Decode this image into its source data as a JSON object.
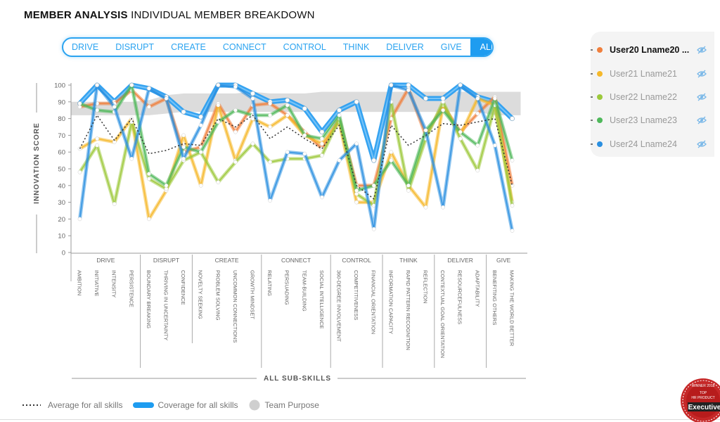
{
  "page": {
    "title_bold": "MEMBER ANALYSIS",
    "title_rest": "INDIVIDUAL MEMBER BREAKDOWN"
  },
  "tabs": [
    {
      "label": "DRIVE",
      "active": false
    },
    {
      "label": "DISRUPT",
      "active": false
    },
    {
      "label": "CREATE",
      "active": false
    },
    {
      "label": "CONNECT",
      "active": false
    },
    {
      "label": "CONTROL",
      "active": false
    },
    {
      "label": "THINK",
      "active": false
    },
    {
      "label": "DELIVER",
      "active": false
    },
    {
      "label": "GIVE",
      "active": false
    },
    {
      "label": "ALL",
      "active": true
    }
  ],
  "users": [
    {
      "name": "User20 Lname20 ...",
      "color": "#f07f3c",
      "selected": true,
      "icon": "eye-slash-icon"
    },
    {
      "name": "User21 Lname21",
      "color": "#f5b82a",
      "selected": false,
      "icon": "eye-slash-icon"
    },
    {
      "name": "User22 Lname22",
      "color": "#9cc93b",
      "selected": false,
      "icon": "eye-slash-icon"
    },
    {
      "name": "User23 Lname23",
      "color": "#4fb85a",
      "selected": false,
      "icon": "eye-slash-icon"
    },
    {
      "name": "User24 Lname24",
      "color": "#2a8fe0",
      "selected": false,
      "icon": "eye-slash-icon"
    }
  ],
  "legend": {
    "average": "Average for all skills",
    "coverage": "Coverage for all skills",
    "purpose": "Team Purpose"
  },
  "badge": {
    "line1": "WINNER 2018",
    "line2": "TOP",
    "line3": "HR PRODUCT",
    "line4": "Executive"
  },
  "chart_data": {
    "type": "line",
    "ylabel": "INNOVATION SCORE",
    "xlabel": "ALL SUB-SKILLS",
    "ylim": [
      0,
      100
    ],
    "yticks": [
      0,
      10,
      20,
      30,
      40,
      50,
      60,
      70,
      80,
      90,
      100
    ],
    "groups": [
      {
        "label": "DRIVE",
        "count": 4
      },
      {
        "label": "DISRUPT",
        "count": 3
      },
      {
        "label": "CREATE",
        "count": 4
      },
      {
        "label": "CONNECT",
        "count": 4
      },
      {
        "label": "CONTROL",
        "count": 3
      },
      {
        "label": "THINK",
        "count": 3
      },
      {
        "label": "DELIVER",
        "count": 3
      },
      {
        "label": "GIVE",
        "count": 2
      }
    ],
    "categories": [
      "AMBITION",
      "INITIATIVE",
      "INTENSITY",
      "PERSISTENCE",
      "BOUNDARY BREAKING",
      "THRIVING IN UNCERTAINTY",
      "CONFIDENCE",
      "NOVELTY SEEKING",
      "PROBLEM SOLVING",
      "UNCOMMON CONNECTIONS",
      "GROWTH MINDSET",
      "RELATING",
      "PERSUADING",
      "TEAM-BUILDING",
      "SOCIAL INTELLIGENCE",
      "360-DEGREE INVOLVEMENT",
      "COMPETITIVENESS",
      "FINANCIAL ORIENTATION",
      "INFORMATION CAPACITY",
      "RAPID PATTERN RECOGNITION",
      "REFLECTION",
      "CONTEXTUAL GOAL ORIENTATION",
      "RESOURCEFULNESS",
      "ADAPTABILITY",
      "BENEFITING OTHERS",
      "MAKING THE WORLD BETTER"
    ],
    "series": [
      {
        "name": "User20 Lname20",
        "color": "#f07f3c",
        "values": [
          87,
          89,
          89,
          97,
          87,
          92,
          60,
          63,
          89,
          72,
          88,
          89,
          82,
          72,
          62,
          80,
          40,
          40,
          80,
          98,
          70,
          88,
          72,
          83,
          93,
          40
        ]
      },
      {
        "name": "User21 Lname21",
        "color": "#f5b82a",
        "values": [
          62,
          68,
          66,
          80,
          20,
          37,
          70,
          40,
          88,
          55,
          80,
          75,
          82,
          70,
          65,
          78,
          30,
          30,
          60,
          40,
          27,
          88,
          70,
          92,
          88,
          30
        ]
      },
      {
        "name": "User22 Lname22",
        "color": "#9cc93b",
        "values": [
          48,
          64,
          29,
          78,
          44,
          38,
          55,
          60,
          42,
          54,
          65,
          54,
          56,
          56,
          58,
          80,
          35,
          28,
          90,
          37,
          68,
          90,
          68,
          49,
          88,
          28
        ]
      },
      {
        "name": "User23 Lname23",
        "color": "#4fb85a",
        "values": [
          89,
          85,
          84,
          100,
          47,
          40,
          63,
          60,
          78,
          85,
          82,
          82,
          88,
          70,
          68,
          82,
          37,
          40,
          55,
          40,
          73,
          85,
          72,
          64,
          92,
          55
        ]
      },
      {
        "name": "User24 Lname24",
        "color": "#2a8fe0",
        "values": [
          20,
          100,
          87,
          56,
          98,
          92,
          56,
          76,
          100,
          99,
          92,
          31,
          60,
          59,
          33,
          55,
          65,
          14,
          100,
          97,
          73,
          27,
          100,
          92,
          64,
          13
        ]
      },
      {
        "name": "Average for all skills",
        "style": "dotted",
        "values": [
          62,
          82,
          67,
          80,
          59,
          61,
          65,
          64,
          80,
          75,
          82,
          68,
          75,
          68,
          62,
          76,
          40,
          32,
          76,
          64,
          70,
          77,
          76,
          78,
          80,
          40
        ]
      },
      {
        "name": "Coverage for all skills",
        "style": "thick",
        "values": [
          89,
          100,
          90,
          100,
          98,
          93,
          84,
          81,
          100,
          100,
          95,
          90,
          91,
          86,
          72,
          85,
          90,
          55,
          100,
          100,
          92,
          92,
          100,
          93,
          90,
          80
        ]
      }
    ],
    "team_purpose_band": {
      "upper": [
        90,
        90,
        90,
        90,
        91,
        94,
        95,
        95,
        95,
        95,
        96,
        95,
        95,
        95,
        96,
        96,
        96,
        96,
        96,
        96,
        96,
        96,
        96,
        96,
        96,
        96
      ],
      "lower": [
        82,
        82,
        82,
        82,
        82,
        83,
        84,
        84,
        84,
        84,
        84,
        84,
        84,
        84,
        84,
        84,
        84,
        84,
        84,
        84,
        84,
        84,
        84,
        84,
        82,
        82
      ]
    },
    "legend_position": "bottom-left",
    "grid": false
  }
}
